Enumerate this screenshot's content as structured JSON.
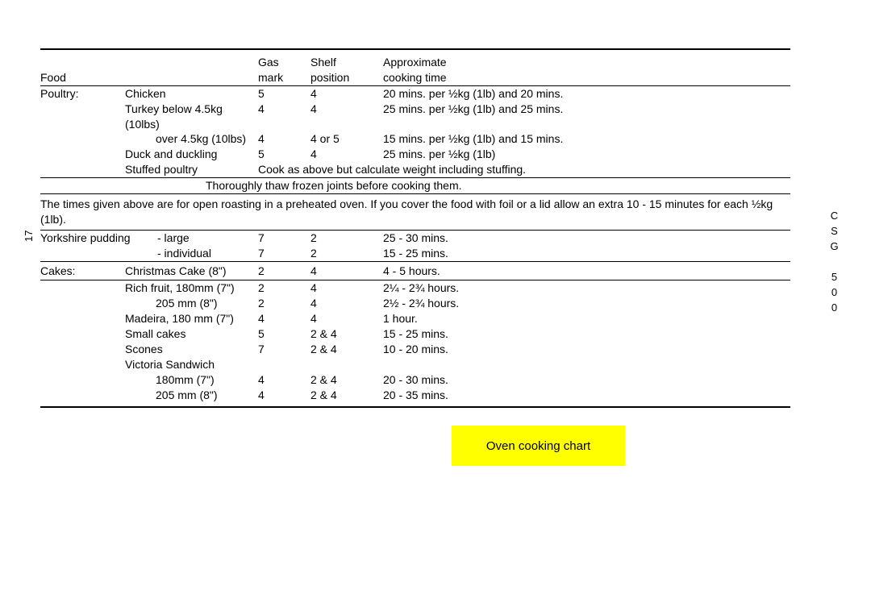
{
  "pageNumber": "17",
  "modelLabel": "CSG 500",
  "header": {
    "food": "Food",
    "gas1": "Gas",
    "gas2": "mark",
    "shelf1": "Shelf",
    "shelf2": "position",
    "time1": "Approximate",
    "time2": "cooking time"
  },
  "poultry": {
    "label": "Poultry:",
    "rows": [
      {
        "item": "Chicken",
        "gas": "5",
        "shelf": "4",
        "time": "20 mins. per ½kg (1lb) and 20 mins.",
        "indent": false
      },
      {
        "item": "Turkey below 4.5kg (10lbs)",
        "gas": "4",
        "shelf": "4",
        "time": "25 mins. per ½kg (1lb) and 25 mins.",
        "indent": false
      },
      {
        "item": "over 4.5kg (10lbs)",
        "gas": "4",
        "shelf": "4 or 5",
        "time": "15 mins. per ½kg (1lb) and 15 mins.",
        "indent": true
      },
      {
        "item": "Duck and duckling",
        "gas": "5",
        "shelf": "4",
        "time": "25 mins. per ½kg (1lb)",
        "indent": false
      }
    ],
    "stuffed": {
      "item": "Stuffed poultry",
      "note": "Cook as above but calculate weight including stuffing."
    }
  },
  "thawNote": "Thoroughly thaw frozen joints before cooking them.",
  "roastingNote": "The times given above are for open roasting in a preheated oven. If you cover the food with foil or a lid allow an extra 10 - 15 minutes  for each ½kg (1lb).",
  "yorkshire": {
    "label": "Yorkshire pudding",
    "rows": [
      {
        "item": "- large",
        "gas": "7",
        "shelf": "2",
        "time": "25 - 30 mins."
      },
      {
        "item": "- individual",
        "gas": "7",
        "shelf": "2",
        "time": "15 - 25 mins."
      }
    ]
  },
  "cakes": {
    "label": "Cakes:",
    "row1": {
      "item": "Christmas Cake (8\")",
      "gas": "2",
      "shelf": "4",
      "time": "4 - 5 hours."
    },
    "rows": [
      {
        "item": "Rich fruit, 180mm (7\")",
        "gas": "2",
        "shelf": "4",
        "time": "2¼ - 2¾ hours.",
        "indent": false
      },
      {
        "item": "205 mm (8\")",
        "gas": "2",
        "shelf": "4",
        "time": "2½ - 2¾ hours.",
        "indent": true
      },
      {
        "item": "Madeira,  180 mm (7\")",
        "gas": "4",
        "shelf": "4",
        "time": "1 hour.",
        "indent": false
      },
      {
        "item": "Small cakes",
        "gas": "5",
        "shelf": "2 & 4",
        "time": "15 - 25 mins.",
        "indent": false
      },
      {
        "item": "Scones",
        "gas": "7",
        "shelf": "2 & 4",
        "time": "10 - 20 mins.",
        "indent": false
      },
      {
        "item": "Victoria Sandwich",
        "gas": "",
        "shelf": "",
        "time": "",
        "indent": false
      },
      {
        "item": "180mm (7\")",
        "gas": "4",
        "shelf": "2 & 4",
        "time": "20 - 30 mins.",
        "indent": true
      },
      {
        "item": "205 mm (8\")",
        "gas": "4",
        "shelf": "2 & 4",
        "time": "20 - 35 mins.",
        "indent": true
      }
    ]
  },
  "chartTitle": "Oven cooking chart",
  "colors": {
    "highlight": "#ffff00",
    "text": "#000000",
    "background": "#ffffff"
  }
}
